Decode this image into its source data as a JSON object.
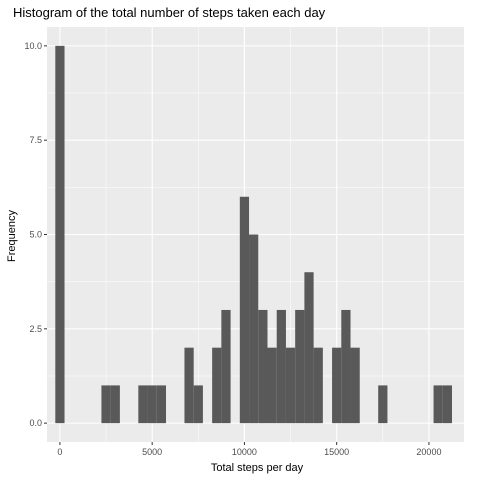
{
  "chart_data": {
    "type": "bar",
    "title": "Histogram of the total number of steps taken each day",
    "xlabel": "Total steps per day",
    "ylabel": "Frequency",
    "bin_width": 500,
    "xlim": [
      -700,
      21900
    ],
    "ylim": [
      -0.5,
      10.5
    ],
    "x_ticks": [
      0,
      5000,
      10000,
      15000,
      20000
    ],
    "x_tick_labels": [
      "0",
      "5000",
      "10000",
      "15000",
      "20000"
    ],
    "y_ticks": [
      0,
      2.5,
      5,
      7.5,
      10
    ],
    "y_tick_labels": [
      "0.0",
      "2.5",
      "5.0",
      "7.5",
      "10.0"
    ],
    "grid": true,
    "bars": [
      {
        "x": 0,
        "count": 10
      },
      {
        "x": 2500,
        "count": 1
      },
      {
        "x": 3000,
        "count": 1
      },
      {
        "x": 4500,
        "count": 1
      },
      {
        "x": 5000,
        "count": 1
      },
      {
        "x": 5500,
        "count": 1
      },
      {
        "x": 7000,
        "count": 2
      },
      {
        "x": 7500,
        "count": 1
      },
      {
        "x": 8500,
        "count": 2
      },
      {
        "x": 9000,
        "count": 3
      },
      {
        "x": 10000,
        "count": 6
      },
      {
        "x": 10500,
        "count": 5
      },
      {
        "x": 11000,
        "count": 3
      },
      {
        "x": 11500,
        "count": 2
      },
      {
        "x": 12000,
        "count": 3
      },
      {
        "x": 12500,
        "count": 2
      },
      {
        "x": 13000,
        "count": 3
      },
      {
        "x": 13500,
        "count": 4
      },
      {
        "x": 14000,
        "count": 2
      },
      {
        "x": 15000,
        "count": 2
      },
      {
        "x": 15500,
        "count": 3
      },
      {
        "x": 16000,
        "count": 2
      },
      {
        "x": 17500,
        "count": 1
      },
      {
        "x": 20500,
        "count": 1
      },
      {
        "x": 21000,
        "count": 1
      }
    ],
    "colors": {
      "panel": "#ebebeb",
      "grid_major": "#ffffff",
      "bar": "#595959"
    }
  }
}
